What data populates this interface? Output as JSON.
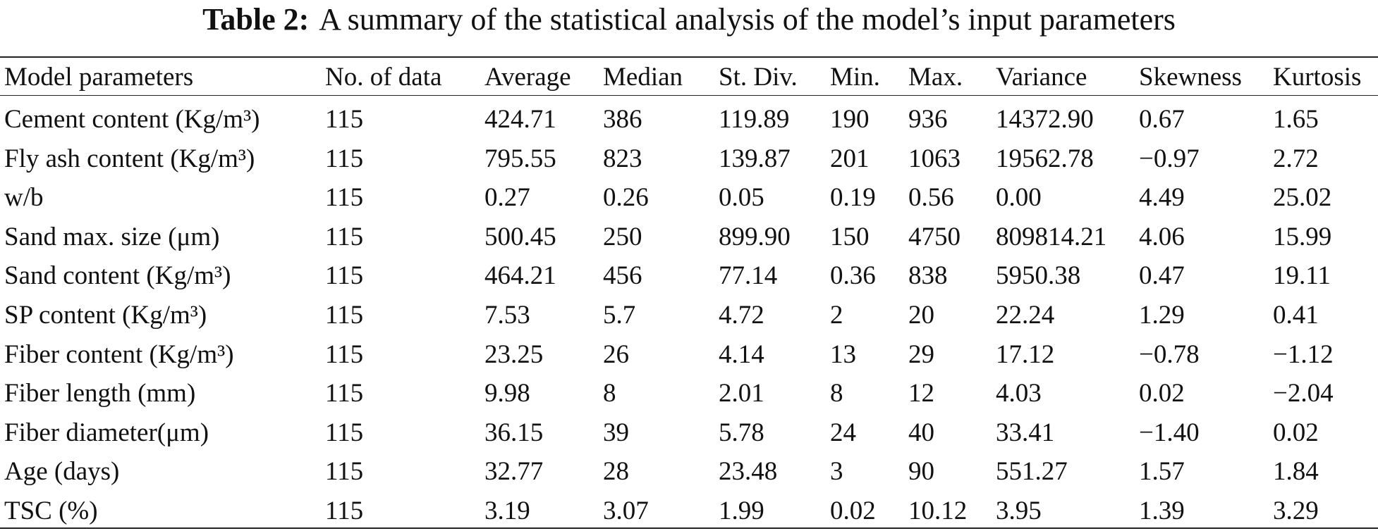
{
  "title": {
    "label": "Table 2:",
    "text": "A summary of the statistical analysis of the model’s input parameters"
  },
  "table": {
    "header": [
      "Model parameters",
      "No. of data",
      "Average",
      "Median",
      "St. Div.",
      "Min.",
      "Max.",
      "Variance",
      "Skewness",
      "Kurtosis"
    ],
    "rows": [
      [
        "Cement content (Kg/m³)",
        "115",
        "424.71",
        "386",
        "119.89",
        "190",
        "936",
        "14372.90",
        "0.67",
        "1.65"
      ],
      [
        "Fly ash content (Kg/m³)",
        "115",
        "795.55",
        "823",
        "139.87",
        "201",
        "1063",
        "19562.78",
        "−0.97",
        "2.72"
      ],
      [
        "w/b",
        "115",
        "0.27",
        "0.26",
        "0.05",
        "0.19",
        "0.56",
        "0.00",
        "4.49",
        "25.02"
      ],
      [
        "Sand max. size (μm)",
        "115",
        "500.45",
        "250",
        "899.90",
        "150",
        "4750",
        "809814.21",
        "4.06",
        "15.99"
      ],
      [
        "Sand content (Kg/m³)",
        "115",
        "464.21",
        "456",
        "77.14",
        "0.36",
        "838",
        "5950.38",
        "0.47",
        "19.11"
      ],
      [
        "SP content (Kg/m³)",
        "115",
        "7.53",
        "5.7",
        "4.72",
        "2",
        "20",
        "22.24",
        "1.29",
        "0.41"
      ],
      [
        "Fiber content (Kg/m³)",
        "115",
        "23.25",
        "26",
        "4.14",
        "13",
        "29",
        "17.12",
        "−0.78",
        "−1.12"
      ],
      [
        "Fiber length (mm)",
        "115",
        "9.98",
        "8",
        "2.01",
        "8",
        "12",
        "4.03",
        "0.02",
        "−2.04"
      ],
      [
        "Fiber diameter(μm)",
        "115",
        "36.15",
        "39",
        "5.78",
        "24",
        "40",
        "33.41",
        "−1.40",
        "0.02"
      ],
      [
        "Age (days)",
        "115",
        "32.77",
        "28",
        "23.48",
        "3",
        "90",
        "551.27",
        "1.57",
        "1.84"
      ],
      [
        "TSC (%)",
        "115",
        "3.19",
        "3.07",
        "1.99",
        "0.02",
        "10.12",
        "3.95",
        "1.39",
        "3.29"
      ]
    ]
  }
}
